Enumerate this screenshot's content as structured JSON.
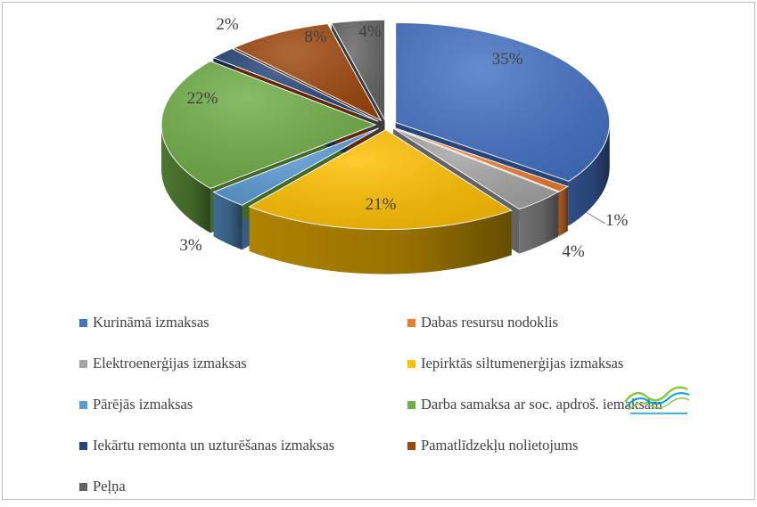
{
  "chart_data": {
    "type": "pie",
    "style": "3d-exploded",
    "series": [
      {
        "name": "Kurināmā izmaksas",
        "value": 35,
        "label": "35%",
        "color": "#4472C4"
      },
      {
        "name": "Dabas resursu nodoklis",
        "value": 1,
        "label": "1%",
        "color": "#ED7D31"
      },
      {
        "name": "Elektroenerģijas izmaksas",
        "value": 4,
        "label": "4%",
        "color": "#A5A5A5"
      },
      {
        "name": "Iepirktās siltumenerģijas izmaksas",
        "value": 21,
        "label": "21%",
        "color": "#FFC000"
      },
      {
        "name": "Pārējās  izmaksas",
        "value": 3,
        "label": "3%",
        "color": "#5B9BD5"
      },
      {
        "name": "Darba samaksa ar soc. apdroš. iemaksām",
        "value": 22,
        "label": "22%",
        "color": "#70AD47"
      },
      {
        "name": "Iekārtu remonta un uzturēšanas izmaksas",
        "value": 2,
        "label": "2%",
        "color": "#264478"
      },
      {
        "name": "Pamatlīdzekļu nolietojums",
        "value": 8,
        "label": "8%",
        "color": "#9E480E"
      },
      {
        "name": "Peļņa",
        "value": 4,
        "label": "4%",
        "color": "#636363"
      }
    ],
    "legend_position": "bottom",
    "legend_columns": 2,
    "grid": false
  },
  "watermark_icon": "green-blue-waves-logo"
}
